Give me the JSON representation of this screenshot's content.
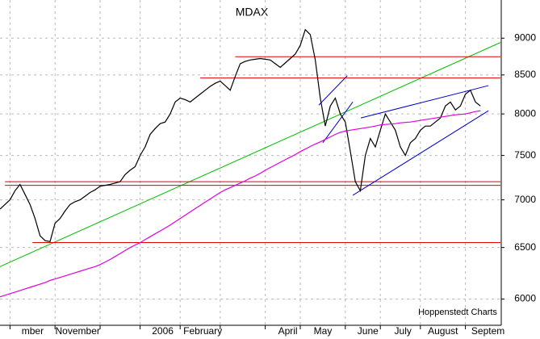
{
  "chart_data": {
    "type": "line",
    "title": "MDAX",
    "note": "Hoppenstedt Charts",
    "log": true,
    "grid": true,
    "ylim": [
      5760,
      9550
    ],
    "yticks": [
      6000,
      6500,
      7000,
      7500,
      8000,
      8500,
      9000
    ],
    "xlim": [
      0,
      100
    ],
    "xticks": [
      2,
      11,
      20,
      28,
      36,
      44,
      53,
      60,
      69,
      76,
      84,
      93
    ],
    "categories": [
      null,
      null,
      "mber",
      null,
      null,
      null,
      null,
      null,
      null,
      null,
      null,
      "November",
      null,
      null,
      null,
      null,
      null,
      null,
      null,
      null,
      null,
      null,
      null,
      null,
      null,
      null,
      null,
      null,
      "2006",
      null,
      null,
      null,
      null,
      null,
      null,
      null,
      "February",
      null,
      null,
      null,
      null,
      null,
      null,
      null,
      null,
      null,
      null,
      null,
      null,
      null,
      null,
      null,
      null,
      "April",
      null,
      null,
      null,
      null,
      null,
      null,
      "May",
      null,
      null,
      null,
      null,
      null,
      null,
      null,
      null,
      "June",
      null,
      null,
      null,
      null,
      null,
      null,
      "July",
      null,
      null,
      null,
      null,
      null,
      null,
      null,
      "August",
      null,
      null,
      null,
      null,
      null,
      null,
      null,
      null,
      "Septem",
      null,
      null,
      null
    ],
    "series": [
      {
        "color": "#000000",
        "values": [
          6900,
          6950,
          7000,
          7100,
          7170,
          7060,
          6950,
          6800,
          6620,
          6570,
          6560,
          6750,
          6800,
          6880,
          6950,
          6980,
          7000,
          7040,
          7080,
          7110,
          7150,
          7160,
          7170,
          7185,
          7200,
          7280,
          7330,
          7370,
          7500,
          7600,
          7750,
          7820,
          7880,
          7900,
          8000,
          8150,
          8200,
          8180,
          8150,
          8200,
          8250,
          8300,
          8350,
          8390,
          8420,
          8360,
          8300,
          8480,
          8650,
          8680,
          8700,
          8710,
          8720,
          8710,
          8700,
          8650,
          8600,
          8660,
          8720,
          8780,
          8900,
          9120,
          9050,
          8700,
          8200,
          7850,
          8100,
          8200,
          8000,
          7900,
          7550,
          7200,
          7100,
          7500,
          7700,
          7600,
          7800,
          8000,
          7900,
          7800,
          7600,
          7500,
          7650,
          7700,
          7800,
          7850,
          7850,
          7900,
          7950,
          8100,
          8150,
          8050,
          8100,
          8250,
          8300,
          8150,
          8100
        ]
      },
      {
        "color": "#e000e0",
        "values": [
          6020,
          6035,
          6050,
          6065,
          6080,
          6095,
          6110,
          6125,
          6140,
          6155,
          6175,
          6190,
          6205,
          6220,
          6235,
          6250,
          6265,
          6280,
          6295,
          6310,
          6330,
          6355,
          6380,
          6410,
          6440,
          6470,
          6500,
          6525,
          6550,
          6580,
          6610,
          6640,
          6670,
          6700,
          6730,
          6765,
          6800,
          6835,
          6870,
          6905,
          6940,
          6975,
          7010,
          7045,
          7080,
          7110,
          7135,
          7160,
          7185,
          7210,
          7240,
          7265,
          7295,
          7330,
          7360,
          7390,
          7420,
          7450,
          7480,
          7510,
          7545,
          7575,
          7605,
          7635,
          7660,
          7690,
          7720,
          7750,
          7775,
          7790,
          7800,
          7810,
          7820,
          7830,
          7840,
          7850,
          7865,
          7870,
          7875,
          7880,
          7890,
          7895,
          7900,
          7910,
          7920,
          7930,
          7940,
          7950,
          7960,
          7970,
          7980,
          7990,
          7995,
          8000,
          8015,
          8030,
          8040
        ]
      }
    ],
    "lines": [
      {
        "color": "#00c000",
        "x": [
          0,
          100
        ],
        "values": [
          6310,
          8940
        ]
      },
      {
        "color": "#e00000",
        "x": [
          6.5,
          100
        ],
        "values": [
          6550,
          6550
        ]
      },
      {
        "color": "#e00000",
        "x": [
          1,
          100
        ],
        "values": [
          7160,
          7160
        ]
      },
      {
        "color": "#e00000",
        "x": [
          1,
          100
        ],
        "values": [
          7200,
          7200
        ]
      },
      {
        "color": "#e00000",
        "x": [
          40,
          100
        ],
        "values": [
          8460,
          8460
        ]
      },
      {
        "color": "#e00000",
        "x": [
          47,
          100
        ],
        "values": [
          8745,
          8745
        ]
      },
      {
        "color": "#0000d0",
        "x": [
          72.1,
          97.6
        ],
        "values": [
          7950,
          8360
        ]
      },
      {
        "color": "#0000d0",
        "x": [
          70.5,
          97.6
        ],
        "values": [
          7050,
          8040
        ]
      },
      {
        "color": "#0000d0",
        "x": [
          63.7,
          69.4
        ],
        "values": [
          8110,
          8490
        ]
      },
      {
        "color": "#0000d0",
        "x": [
          64.5,
          70.5
        ],
        "values": [
          7650,
          8150
        ]
      }
    ]
  }
}
